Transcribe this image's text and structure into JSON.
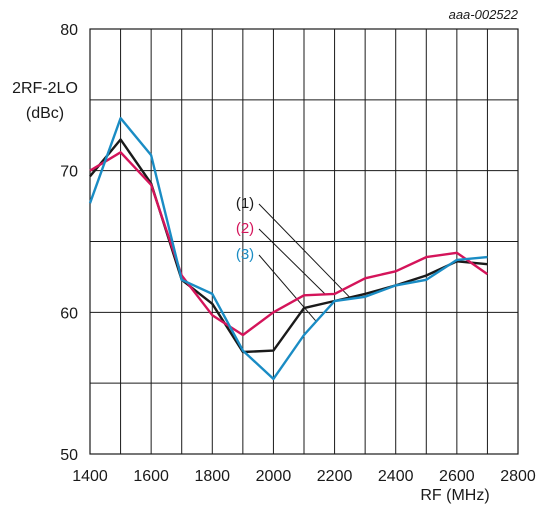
{
  "chart_data": {
    "type": "line",
    "reference_code": "aaa-002522",
    "ylabel_line1": "2RF-2LO",
    "ylabel_line2": "(dBc)",
    "xlabel": "RF (MHz)",
    "xlim": [
      1400,
      2800
    ],
    "ylim": [
      50,
      80
    ],
    "x_ticks": [
      "1400",
      "1600",
      "1800",
      "2000",
      "2200",
      "2400",
      "2600",
      "2800"
    ],
    "y_ticks": [
      "50",
      "60",
      "70",
      "80"
    ],
    "grid": true,
    "series": [
      {
        "name": "(1)",
        "color": "#1a1a1a",
        "x": [
          1400,
          1500,
          1600,
          1700,
          1800,
          1900,
          2000,
          2100,
          2200,
          2300,
          2400,
          2500,
          2600,
          2700
        ],
        "y": [
          69.6,
          72.2,
          69.1,
          62.3,
          60.6,
          57.2,
          57.3,
          60.3,
          60.8,
          61.3,
          61.9,
          62.6,
          63.6,
          63.4
        ]
      },
      {
        "name": "(2)",
        "color": "#d4145a",
        "x": [
          1400,
          1500,
          1600,
          1700,
          1800,
          1900,
          2000,
          2100,
          2200,
          2300,
          2400,
          2500,
          2600,
          2700
        ],
        "y": [
          70.0,
          71.3,
          69.0,
          62.6,
          59.8,
          58.4,
          60.0,
          61.2,
          61.3,
          62.4,
          62.9,
          63.9,
          64.2,
          62.7
        ]
      },
      {
        "name": "(3)",
        "color": "#1a8cc4",
        "x": [
          1400,
          1500,
          1600,
          1700,
          1800,
          1900,
          2000,
          2100,
          2200,
          2300,
          2400,
          2500,
          2600,
          2700
        ],
        "y": [
          67.7,
          73.7,
          71.1,
          62.3,
          61.3,
          57.3,
          55.3,
          58.4,
          60.8,
          61.1,
          61.9,
          62.3,
          63.7,
          63.9
        ]
      }
    ]
  }
}
